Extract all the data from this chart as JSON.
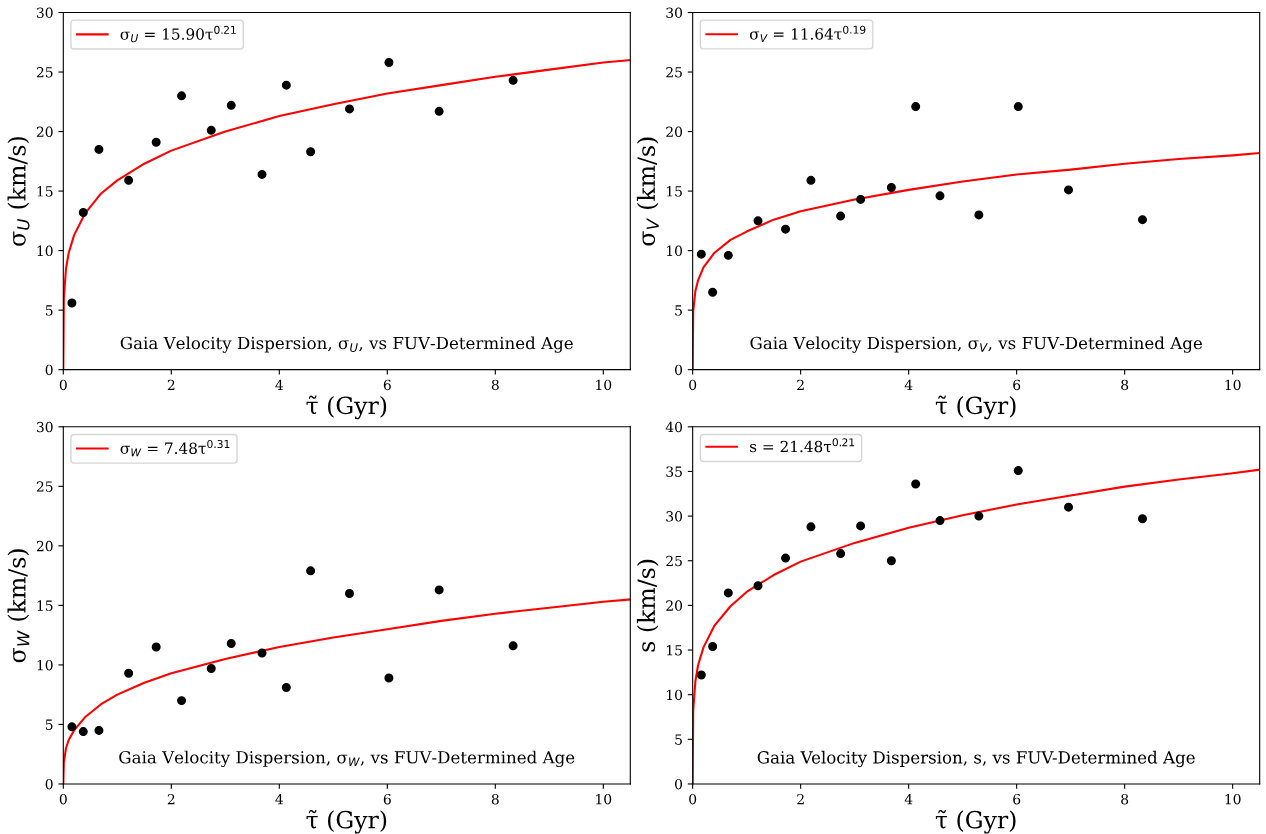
{
  "chart_data": [
    {
      "type": "scatter",
      "xlabel": "τ̃ (Gyr)",
      "ylabel": "σ$_{U}$ (km/s)",
      "xlim": [
        0,
        10.5
      ],
      "xticks": [
        0,
        2,
        4,
        6,
        8,
        10
      ],
      "ylim": [
        0,
        30
      ],
      "yticks": [
        0,
        5,
        10,
        15,
        20,
        25,
        30
      ],
      "grid": false,
      "legend": "top left",
      "annotations": [
        "Gaia Velocity Dispersion, σ$_{U}$, vs FUV-Determined Age"
      ],
      "x": [
        0.16,
        0.37,
        0.66,
        1.21,
        1.72,
        2.19,
        2.74,
        3.11,
        3.68,
        4.13,
        4.58,
        5.3,
        6.03,
        6.96,
        8.33
      ],
      "series": [
        {
          "color": "#000000",
          "marker": "circle",
          "values": [
            5.6,
            13.2,
            18.5,
            15.9,
            19.1,
            23.0,
            20.1,
            22.2,
            16.4,
            23.9,
            18.3,
            21.9,
            25.8,
            21.7,
            24.3
          ]
        },
        {
          "type": "line",
          "marker": "none",
          "name": "σ$_{U}$ = 15.90τ$^{0.21}$",
          "color": "#ff0000",
          "x": [
            0,
            0.01,
            0.05,
            0.1,
            0.2,
            0.4,
            0.7,
            1,
            1.5,
            2,
            3,
            4,
            5,
            6,
            7,
            8,
            9,
            10,
            10.5
          ],
          "values": [
            0,
            6.0,
            8.5,
            9.8,
            11.3,
            13.1,
            14.8,
            15.9,
            17.3,
            18.4,
            20.0,
            21.3,
            22.3,
            23.2,
            23.9,
            24.6,
            25.2,
            25.8,
            26.0
          ]
        }
      ]
    },
    {
      "type": "scatter",
      "xlabel": "τ̃ (Gyr)",
      "ylabel": "σ$_{V}$ (km/s)",
      "xlim": [
        0,
        10.5
      ],
      "xticks": [
        0,
        2,
        4,
        6,
        8,
        10
      ],
      "ylim": [
        0,
        30
      ],
      "yticks": [
        0,
        5,
        10,
        15,
        20,
        25,
        30
      ],
      "grid": false,
      "legend": "top left",
      "annotations": [
        "Gaia Velocity Dispersion, σ$_{V}$, vs FUV-Determined Age"
      ],
      "x": [
        0.16,
        0.37,
        0.66,
        1.21,
        1.72,
        2.19,
        2.74,
        3.11,
        3.68,
        4.13,
        4.58,
        5.3,
        6.03,
        6.96,
        8.33
      ],
      "series": [
        {
          "color": "#000000",
          "marker": "circle",
          "values": [
            9.7,
            6.5,
            9.6,
            12.5,
            11.8,
            15.9,
            12.9,
            14.3,
            15.3,
            22.1,
            14.6,
            13.0,
            22.1,
            15.1,
            12.6
          ]
        },
        {
          "type": "line",
          "marker": "none",
          "name": "σ$_{V}$ = 11.64τ$^{0.19}$",
          "color": "#ff0000",
          "x": [
            0,
            0.01,
            0.05,
            0.1,
            0.2,
            0.4,
            0.7,
            1,
            1.5,
            2,
            3,
            4,
            5,
            6,
            7,
            8,
            9,
            10,
            10.5
          ],
          "values": [
            0,
            4.9,
            6.6,
            7.5,
            8.6,
            9.8,
            10.9,
            11.6,
            12.6,
            13.3,
            14.3,
            15.1,
            15.8,
            16.4,
            16.8,
            17.3,
            17.7,
            18.0,
            18.2
          ]
        }
      ]
    },
    {
      "type": "scatter",
      "xlabel": "τ̃ (Gyr)",
      "ylabel": "σ$_{W}$ (km/s)",
      "xlim": [
        0,
        10.5
      ],
      "xticks": [
        0,
        2,
        4,
        6,
        8,
        10
      ],
      "ylim": [
        0,
        30
      ],
      "yticks": [
        0,
        5,
        10,
        15,
        20,
        25,
        30
      ],
      "grid": false,
      "legend": "top left",
      "annotations": [
        "Gaia Velocity Dispersion, σ$_{W}$, vs FUV-Determined Age"
      ],
      "x": [
        0.16,
        0.37,
        0.66,
        1.21,
        1.72,
        2.19,
        2.74,
        3.11,
        3.68,
        4.13,
        4.58,
        5.3,
        6.03,
        6.96,
        8.33
      ],
      "series": [
        {
          "color": "#000000",
          "marker": "circle",
          "values": [
            4.8,
            4.4,
            4.5,
            9.3,
            11.5,
            7.0,
            9.7,
            11.8,
            11.0,
            8.1,
            17.9,
            16.0,
            8.9,
            16.3,
            11.6
          ]
        },
        {
          "type": "line",
          "marker": "none",
          "name": "σ$_{W}$ = 7.48τ$^{0.31}$",
          "color": "#ff0000",
          "x": [
            0,
            0.01,
            0.05,
            0.1,
            0.2,
            0.4,
            0.7,
            1,
            1.5,
            2,
            3,
            4,
            5,
            6,
            7,
            8,
            9,
            10,
            10.5
          ],
          "values": [
            0,
            1.8,
            3.0,
            3.7,
            4.5,
            5.6,
            6.7,
            7.5,
            8.5,
            9.3,
            10.5,
            11.5,
            12.3,
            13.0,
            13.7,
            14.3,
            14.8,
            15.3,
            15.5
          ]
        }
      ]
    },
    {
      "type": "scatter",
      "xlabel": "τ̃ (Gyr)",
      "ylabel": "s (km/s)",
      "xlim": [
        0,
        10.5
      ],
      "xticks": [
        0,
        2,
        4,
        6,
        8,
        10
      ],
      "ylim": [
        0,
        40
      ],
      "yticks": [
        0,
        5,
        10,
        15,
        20,
        25,
        30,
        35,
        40
      ],
      "grid": false,
      "legend": "top left",
      "annotations": [
        "Gaia Velocity Dispersion, s, vs FUV-Determined Age"
      ],
      "x": [
        0.16,
        0.37,
        0.66,
        1.21,
        1.72,
        2.19,
        2.74,
        3.11,
        3.68,
        4.13,
        4.58,
        5.3,
        6.03,
        6.96,
        8.33
      ],
      "series": [
        {
          "color": "#000000",
          "marker": "circle",
          "values": [
            12.2,
            15.4,
            21.4,
            22.2,
            25.3,
            28.8,
            25.8,
            28.9,
            25.0,
            33.6,
            29.5,
            30.0,
            35.1,
            31.0,
            29.7
          ]
        },
        {
          "type": "line",
          "marker": "none",
          "name": "s = 21.48τ$^{0.21}$",
          "color": "#ff0000",
          "x": [
            0,
            0.01,
            0.05,
            0.1,
            0.2,
            0.4,
            0.7,
            1,
            1.5,
            2,
            3,
            4,
            5,
            6,
            7,
            8,
            9,
            10,
            10.5
          ],
          "values": [
            0,
            8.2,
            11.5,
            13.3,
            15.3,
            17.7,
            19.9,
            21.5,
            23.4,
            24.9,
            27.0,
            28.7,
            30.1,
            31.3,
            32.3,
            33.3,
            34.1,
            34.8,
            35.2
          ]
        }
      ]
    }
  ]
}
